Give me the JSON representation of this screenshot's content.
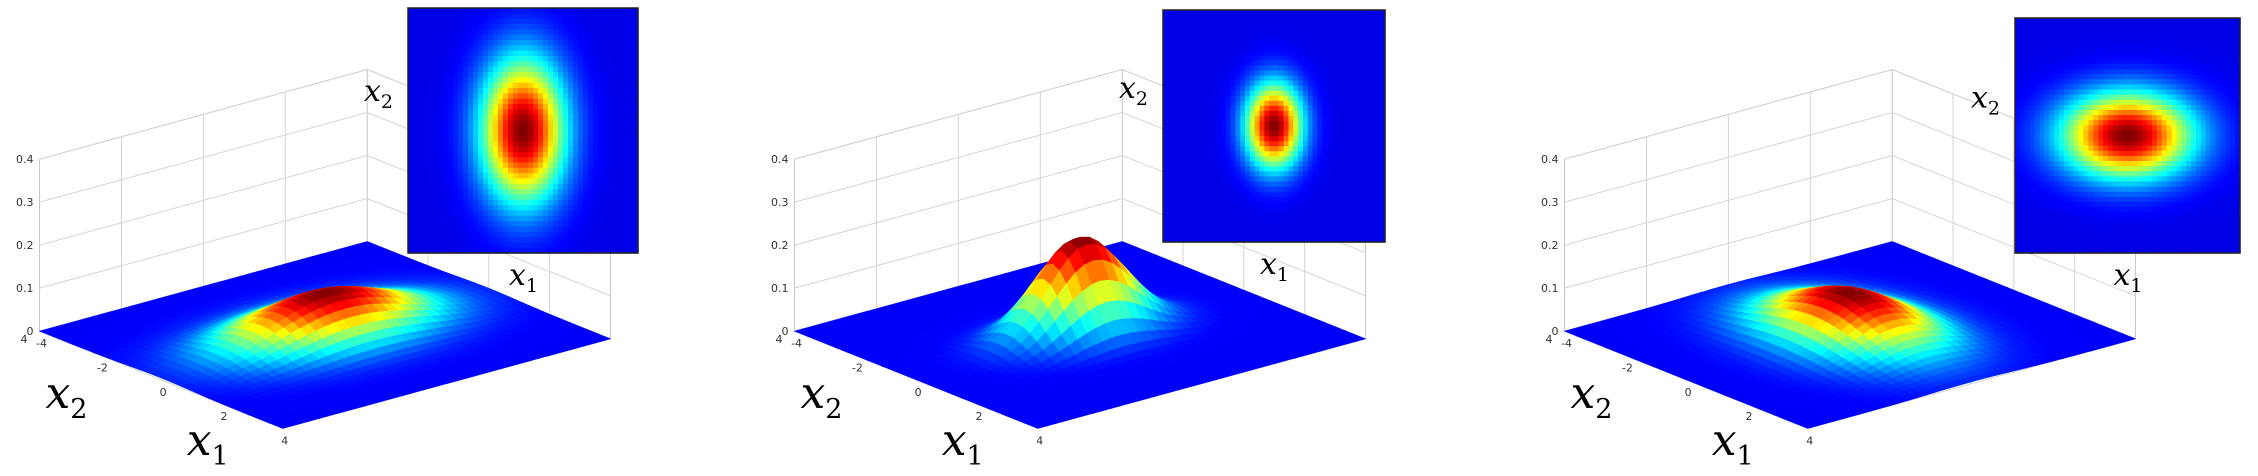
{
  "chart_data": [
    {
      "type": "surface",
      "surface": {
        "title": "",
        "xlabel": "x",
        "xlabel_sub": "1",
        "ylabel": "x",
        "ylabel_sub": "2",
        "zlim": [
          0,
          0.4
        ],
        "z_ticks": [
          "0",
          "0.1",
          "0.2",
          "0.3",
          "0.4"
        ],
        "x_ticks": [
          "-4",
          "-2",
          "0",
          "2",
          "4"
        ],
        "y_ticks": [
          "-4",
          "-2",
          "0",
          "2",
          "4"
        ],
        "xlim": [
          -4,
          4
        ],
        "ylim": [
          -4,
          4
        ]
      },
      "heatmap": {
        "xlabel": "x",
        "xlabel_sub": "1",
        "ylabel": "x",
        "ylabel_sub": "2"
      },
      "distribution": {
        "mean": [
          0,
          0
        ],
        "sigma_x1": 1.0,
        "sigma_x2": 1.6
      },
      "colormap": "jet"
    },
    {
      "type": "surface",
      "surface": {
        "title": "",
        "xlabel": "x",
        "xlabel_sub": "1",
        "ylabel": "x",
        "ylabel_sub": "2",
        "zlim": [
          0,
          0.4
        ],
        "z_ticks": [
          "0",
          "0.1",
          "0.2",
          "0.3",
          "0.4"
        ],
        "x_ticks": [
          "-4",
          "-2",
          "0",
          "2",
          "4"
        ],
        "y_ticks": [
          "-4",
          "-2",
          "0",
          "2",
          "4"
        ],
        "xlim": [
          -4,
          4
        ],
        "ylim": [
          -4,
          4
        ]
      },
      "heatmap": {
        "xlabel": "x",
        "xlabel_sub": "1",
        "ylabel": "x",
        "ylabel_sub": "2"
      },
      "distribution": {
        "mean": [
          0,
          0
        ],
        "sigma_x1": 0.7,
        "sigma_x2": 1.0
      },
      "colormap": "jet"
    },
    {
      "type": "surface",
      "surface": {
        "title": "",
        "xlabel": "x",
        "xlabel_sub": "1",
        "ylabel": "x",
        "ylabel_sub": "2",
        "zlim": [
          0,
          0.4
        ],
        "z_ticks": [
          "0",
          "0.1",
          "0.2",
          "0.3",
          "0.4"
        ],
        "x_ticks": [
          "-4",
          "-2",
          "0",
          "2",
          "4"
        ],
        "y_ticks": [
          "-4",
          "-2",
          "0",
          "2",
          "4"
        ],
        "xlim": [
          -4,
          4
        ],
        "ylim": [
          -4,
          4
        ]
      },
      "heatmap": {
        "xlabel": "x",
        "xlabel_sub": "1",
        "ylabel": "x",
        "ylabel_sub": "2"
      },
      "distribution": {
        "mean": [
          0,
          0
        ],
        "sigma_x1": 1.6,
        "sigma_x2": 1.0
      },
      "colormap": "jet"
    }
  ]
}
